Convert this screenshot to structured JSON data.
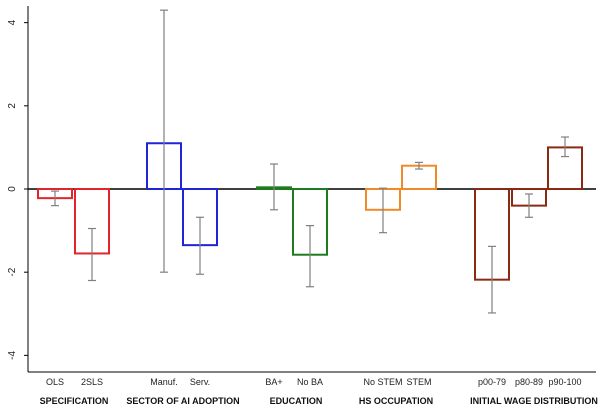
{
  "chart_data": {
    "type": "bar",
    "ylim": [
      -4.4,
      4.4
    ],
    "yticks": [
      "-4",
      "-2",
      "0",
      "2",
      "4"
    ],
    "ytick_values": [
      -4,
      -2,
      0,
      2,
      4
    ],
    "grid": false,
    "legend": "none",
    "groups": [
      {
        "label": "SPECIFICATION",
        "color": "#e0262b",
        "bars": [
          {
            "label": "OLS",
            "value": -0.22,
            "ci": [
              -0.4,
              -0.05
            ]
          },
          {
            "label": "2SLS",
            "value": -1.55,
            "ci": [
              -2.2,
              -0.95
            ]
          }
        ]
      },
      {
        "label": "SECTOR OF AI ADOPTION",
        "color": "#1f24d6",
        "bars": [
          {
            "label": "Manuf.",
            "value": 1.1,
            "ci": [
              -2.0,
              4.3
            ]
          },
          {
            "label": "Serv.",
            "value": -1.35,
            "ci": [
              -2.05,
              -0.68
            ]
          }
        ]
      },
      {
        "label": "EDUCATION",
        "color": "#1e7b1e",
        "bars": [
          {
            "label": "BA+",
            "value": 0.04,
            "ci": [
              -0.5,
              0.6
            ]
          },
          {
            "label": "No BA",
            "value": -1.58,
            "ci": [
              -2.35,
              -0.88
            ]
          }
        ]
      },
      {
        "label": "HS OCCUPATION",
        "color": "#f08a28",
        "bars": [
          {
            "label": "No STEM",
            "value": -0.5,
            "ci": [
              -1.05,
              0.02
            ]
          },
          {
            "label": "STEM",
            "value": 0.56,
            "ci": [
              0.48,
              0.64
            ]
          }
        ]
      },
      {
        "label": "INITIAL WAGE DISTRIBUTION",
        "color": "#8b2a12",
        "bars": [
          {
            "label": "p00-79",
            "value": -2.18,
            "ci": [
              -2.98,
              -1.38
            ]
          },
          {
            "label": "p80-89",
            "value": -0.4,
            "ci": [
              -0.68,
              -0.12
            ]
          },
          {
            "label": "p90-100",
            "value": 1.0,
            "ci": [
              0.78,
              1.25
            ]
          }
        ]
      }
    ]
  }
}
